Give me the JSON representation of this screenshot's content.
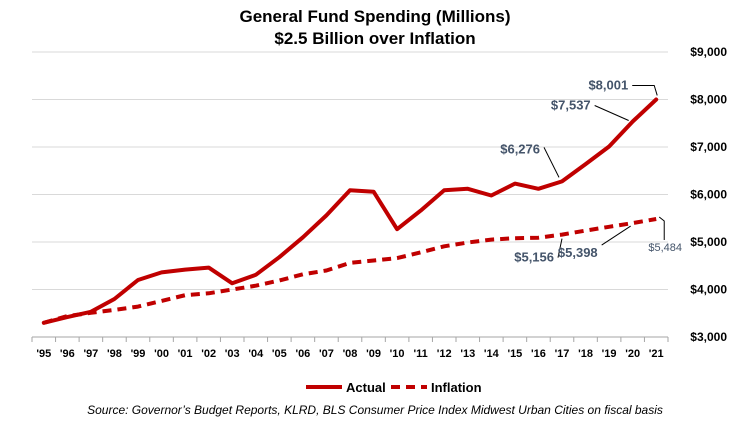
{
  "chart_data": {
    "type": "line",
    "title": "General Fund Spending (Millions)",
    "subtitle": "$2.5 Billion over Inflation",
    "x": [
      "'95",
      "'96",
      "'97",
      "'98",
      "'99",
      "'00",
      "'01",
      "'02",
      "'03",
      "'04",
      "'05",
      "'06",
      "'07",
      "'08",
      "'09",
      "'10",
      "'11",
      "'12",
      "'13",
      "'14",
      "'15",
      "'16",
      "'17",
      "'18",
      "'19",
      "'20",
      "'21"
    ],
    "series": [
      {
        "name": "Actual",
        "color": "#c00000",
        "style": "solid",
        "values": [
          3300,
          3420,
          3530,
          3800,
          4200,
          4360,
          4420,
          4460,
          4130,
          4310,
          4680,
          5100,
          5560,
          6090,
          6060,
          5270,
          5660,
          6090,
          6120,
          5980,
          6230,
          6120,
          6276,
          6640,
          7010,
          7537,
          8001
        ]
      },
      {
        "name": "Inflation",
        "color": "#c00000",
        "style": "dashed",
        "values": [
          3300,
          3440,
          3510,
          3570,
          3640,
          3760,
          3880,
          3920,
          4000,
          4080,
          4190,
          4320,
          4400,
          4560,
          4610,
          4660,
          4780,
          4910,
          4990,
          5050,
          5080,
          5090,
          5156,
          5240,
          5320,
          5398,
          5484
        ]
      }
    ],
    "ylim": [
      3000,
      9000
    ],
    "yticks": [
      {
        "value": 3000,
        "label": "$3,000"
      },
      {
        "value": 4000,
        "label": "$4,000"
      },
      {
        "value": 5000,
        "label": "$5,000"
      },
      {
        "value": 6000,
        "label": "$6,000"
      },
      {
        "value": 7000,
        "label": "$7,000"
      },
      {
        "value": 8000,
        "label": "$8,000"
      },
      {
        "value": 9000,
        "label": "$9,000"
      }
    ],
    "grid": true,
    "legend_position": "bottom",
    "annotations": [
      {
        "series": "Actual",
        "index": 26,
        "label": "$8,001"
      },
      {
        "series": "Actual",
        "index": 25,
        "label": "$7,537"
      },
      {
        "series": "Actual",
        "index": 22,
        "label": "$6,276"
      },
      {
        "series": "Inflation",
        "index": 22,
        "label": "$5,156"
      },
      {
        "series": "Inflation",
        "index": 25,
        "label": "$5,398"
      },
      {
        "series": "Inflation",
        "index": 26,
        "label": "$5,484"
      }
    ],
    "annotation_color": "#44546a"
  },
  "source": "Source: Governor’s Budget Reports, KLRD, BLS Consumer Price Index Midwest Urban Cities on fiscal basis"
}
